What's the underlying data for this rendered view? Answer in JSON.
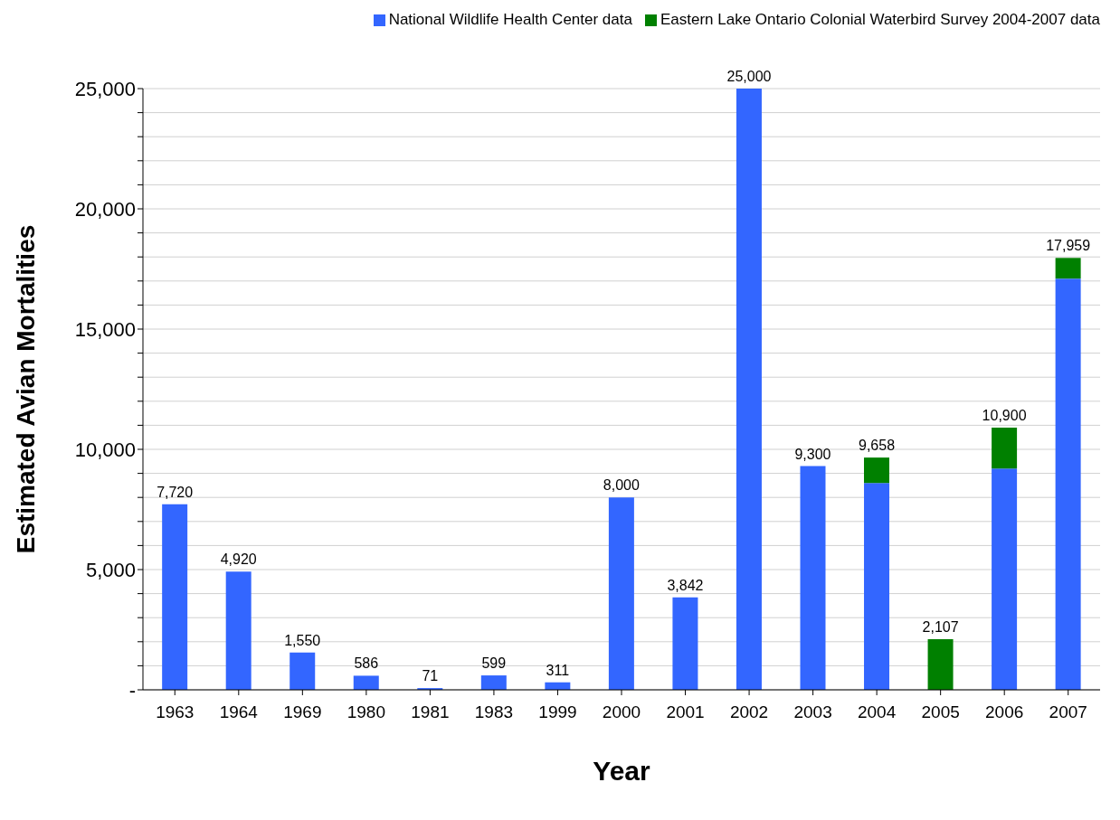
{
  "chart_data": {
    "type": "bar",
    "stacked": true,
    "xlabel": "Year",
    "ylabel": "Estimated Avian Mortalities",
    "categories": [
      "1963",
      "1964",
      "1969",
      "1980",
      "1981",
      "1983",
      "1999",
      "2000",
      "2001",
      "2002",
      "2003",
      "2004",
      "2005",
      "2006",
      "2007"
    ],
    "series": [
      {
        "name": "National Wildlife Health Center data",
        "color": "#3366ff",
        "values": [
          7720,
          4920,
          1550,
          586,
          71,
          599,
          311,
          8000,
          3842,
          25000,
          9300,
          8600,
          null,
          9200,
          17100
        ]
      },
      {
        "name": "Eastern Lake Ontario Colonial Waterbird Survey 2004-2007 data",
        "color": "#008000",
        "values": [
          null,
          null,
          null,
          null,
          null,
          null,
          null,
          null,
          null,
          null,
          null,
          1058,
          2107,
          1700,
          859
        ]
      }
    ],
    "totals": [
      "7,720",
      "4,920",
      "1,550",
      "586",
      "71",
      "599",
      "311",
      "8,000",
      "3,842",
      "25,000",
      "9,300",
      "9,658",
      "2,107",
      "10,900",
      "17,959"
    ],
    "ylim": [
      0,
      25000
    ],
    "yticks": [
      {
        "value": 0,
        "label": "-"
      },
      {
        "value": 1000,
        "label": null
      },
      {
        "value": 2000,
        "label": null
      },
      {
        "value": 3000,
        "label": null
      },
      {
        "value": 4000,
        "label": null
      },
      {
        "value": 5000,
        "label": "5,000"
      },
      {
        "value": 6000,
        "label": null
      },
      {
        "value": 7000,
        "label": null
      },
      {
        "value": 8000,
        "label": null
      },
      {
        "value": 9000,
        "label": null
      },
      {
        "value": 10000,
        "label": "10,000"
      },
      {
        "value": 11000,
        "label": null
      },
      {
        "value": 12000,
        "label": null
      },
      {
        "value": 13000,
        "label": null
      },
      {
        "value": 14000,
        "label": null
      },
      {
        "value": 15000,
        "label": "15,000"
      },
      {
        "value": 16000,
        "label": null
      },
      {
        "value": 17000,
        "label": null
      },
      {
        "value": 18000,
        "label": null
      },
      {
        "value": 19000,
        "label": null
      },
      {
        "value": 20000,
        "label": "20,000"
      },
      {
        "value": 21000,
        "label": null
      },
      {
        "value": 22000,
        "label": null
      },
      {
        "value": 23000,
        "label": null
      },
      {
        "value": 24000,
        "label": null
      },
      {
        "value": 25000,
        "label": "25,000"
      }
    ],
    "grid": "y",
    "legend": "top"
  }
}
